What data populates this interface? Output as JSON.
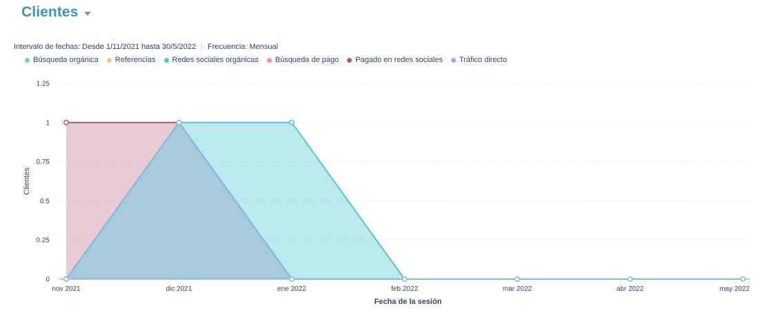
{
  "header": {
    "title": "Clientes",
    "dropdown_icon": "chevron-down-icon"
  },
  "meta": {
    "date_range": "Intervalo de fechas:  Desde 1/11/2021 hasta 30/5/2022",
    "frequency": "Frecuencia: Mensual"
  },
  "colors": {
    "title": "#3a95b5",
    "busqueda_organica": "#8fd18a",
    "referencias": "#f5c28a",
    "redes_sociales_organicas": "#4fc8cc",
    "busqueda_de_pago": "#ea90b1",
    "pagado_en_redes_sociales": "#b0566f",
    "trafico_directo": "#7fb6ea"
  },
  "chart_data": {
    "type": "area",
    "xlabel": "Fecha de la sesión",
    "ylabel": "Clientes",
    "ylim": [
      0,
      1.25
    ],
    "yticks": [
      "0",
      "0.25",
      "0.5",
      "0.75",
      "1",
      "1.25"
    ],
    "categories": [
      "nov 2021",
      "dic 2021",
      "ene 2022",
      "feb 2022",
      "mar 2022",
      "abr 2022",
      "may 2022"
    ],
    "grid": true,
    "legend_position": "top-left",
    "series": [
      {
        "name": "Búsqueda orgánica",
        "color": "#8fd18a",
        "values": [
          0,
          0,
          0,
          0,
          0,
          0,
          0
        ]
      },
      {
        "name": "Referencias",
        "color": "#f5c28a",
        "values": [
          0,
          0,
          0,
          0,
          0,
          0,
          0
        ]
      },
      {
        "name": "Redes sociales orgánicas",
        "color": "#4fc8cc",
        "values": [
          0,
          1,
          1,
          0,
          0,
          0,
          0
        ]
      },
      {
        "name": "Búsqueda de pago",
        "color": "#ea90b1",
        "values": [
          0,
          0,
          0,
          0,
          0,
          0,
          0
        ]
      },
      {
        "name": "Pagado en redes sociales",
        "color": "#b0566f",
        "values": [
          1,
          1,
          0,
          0,
          0,
          0,
          0
        ]
      },
      {
        "name": "Tráfico directo",
        "color": "#7fb6ea",
        "values": [
          0,
          1,
          0,
          0,
          0,
          0,
          0
        ]
      }
    ]
  }
}
